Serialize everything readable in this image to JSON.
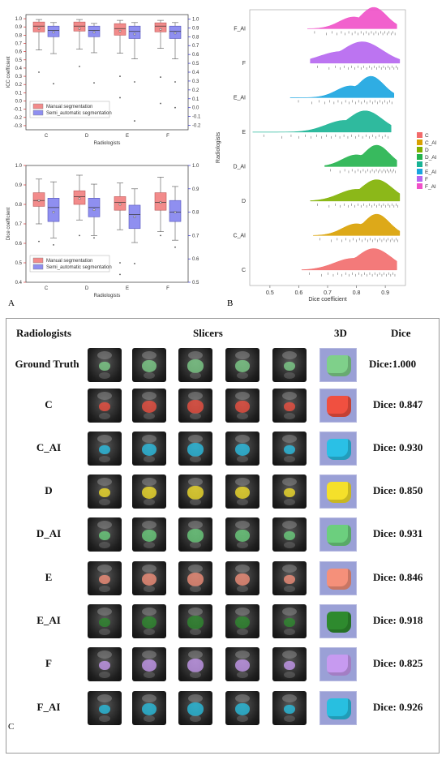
{
  "panel_labels": {
    "a": "A",
    "b": "B",
    "c": "C"
  },
  "chart_data": [
    {
      "type": "box",
      "ylabel": "ICC coefficient",
      "xlabel": "Radiologists",
      "categories": [
        "C",
        "D",
        "E",
        "F"
      ],
      "ylim": [
        -0.35,
        1.05
      ],
      "yticks": [
        -0.3,
        -0.2,
        -0.1,
        0.0,
        0.1,
        0.2,
        0.3,
        0.4,
        0.5,
        0.6,
        0.7,
        0.8,
        0.9,
        1.0
      ],
      "ytick_labels": [
        "-0.3",
        "-0.2",
        "-0.1",
        "0.0",
        "0.1",
        "0.2",
        "0.3",
        "0.4",
        "0.5",
        "0.6",
        "0.7",
        "0.8",
        "0.9",
        "1.0"
      ],
      "y2lim": [
        -0.25,
        1.05
      ],
      "y2ticks": [
        -0.2,
        -0.1,
        0.0,
        0.1,
        0.2,
        0.3,
        0.4,
        0.5,
        0.6,
        0.7,
        0.8,
        0.9,
        1.0
      ],
      "y2tick_labels": [
        "-0.2",
        "-0.1",
        "0.0",
        "0.1",
        "0.2",
        "0.3",
        "0.4",
        "0.5",
        "0.6",
        "0.7",
        "0.8",
        "0.9",
        "1.0"
      ],
      "legend": "bottom-left",
      "series": [
        {
          "name": "Manual segmentation",
          "color": "#f28b8b",
          "boxes": [
            {
              "min": 0.62,
              "q1": 0.84,
              "median": 0.91,
              "q3": 0.96,
              "max": 0.99,
              "mean": 0.88,
              "outliers": [
                0.35
              ]
            },
            {
              "min": 0.63,
              "q1": 0.85,
              "median": 0.91,
              "q3": 0.96,
              "max": 0.99,
              "mean": 0.88,
              "outliers": [
                0.42
              ]
            },
            {
              "min": 0.58,
              "q1": 0.8,
              "median": 0.88,
              "q3": 0.94,
              "max": 0.98,
              "mean": 0.85,
              "outliers": [
                0.3,
                0.04
              ]
            },
            {
              "min": 0.64,
              "q1": 0.84,
              "median": 0.91,
              "q3": 0.95,
              "max": 0.98,
              "mean": 0.87,
              "outliers": [
                0.29,
                -0.03
              ]
            }
          ]
        },
        {
          "name": "Semi_automatic segmentation",
          "color": "#8f8ff0",
          "boxes": [
            {
              "min": 0.61,
              "q1": 0.8,
              "median": 0.87,
              "q3": 0.92,
              "max": 0.96,
              "mean": 0.85,
              "outliers": [
                0.27
              ]
            },
            {
              "min": 0.62,
              "q1": 0.8,
              "median": 0.87,
              "q3": 0.92,
              "max": 0.95,
              "mean": 0.85,
              "outliers": [
                0.28
              ]
            },
            {
              "min": 0.55,
              "q1": 0.78,
              "median": 0.86,
              "q3": 0.92,
              "max": 0.96,
              "mean": 0.83,
              "outliers": [
                0.29,
                -0.15
              ]
            },
            {
              "min": 0.55,
              "q1": 0.78,
              "median": 0.86,
              "q3": 0.92,
              "max": 0.96,
              "mean": 0.84,
              "outliers": [
                0.29,
                0.0
              ]
            }
          ]
        }
      ]
    },
    {
      "type": "box",
      "ylabel": "Dice coefficient",
      "xlabel": "Radiologists",
      "categories": [
        "C",
        "D",
        "E",
        "F"
      ],
      "ylim": [
        0.4,
        1.0
      ],
      "yticks": [
        0.4,
        0.5,
        0.6,
        0.7,
        0.8,
        0.9,
        1.0
      ],
      "ytick_labels": [
        "0.4",
        "0.5",
        "0.6",
        "0.7",
        "0.8",
        "0.9",
        "1.0"
      ],
      "y2lim": [
        0.5,
        1.0
      ],
      "y2ticks": [
        0.5,
        0.6,
        0.7,
        0.8,
        0.9,
        1.0
      ],
      "y2tick_labels": [
        "0.5",
        "0.6",
        "0.7",
        "0.8",
        "0.9",
        "1.0"
      ],
      "legend": "bottom-left",
      "series": [
        {
          "name": "Manual segmentation",
          "color": "#f28b8b",
          "boxes": [
            {
              "min": 0.7,
              "q1": 0.79,
              "median": 0.82,
              "q3": 0.86,
              "max": 0.93,
              "mean": 0.82,
              "outliers": [
                0.61
              ]
            },
            {
              "min": 0.72,
              "q1": 0.8,
              "median": 0.84,
              "q3": 0.87,
              "max": 0.95,
              "mean": 0.83,
              "outliers": [
                0.64
              ]
            },
            {
              "min": 0.67,
              "q1": 0.77,
              "median": 0.81,
              "q3": 0.84,
              "max": 0.91,
              "mean": 0.8,
              "outliers": [
                0.44,
                0.5
              ]
            },
            {
              "min": 0.66,
              "q1": 0.77,
              "median": 0.81,
              "q3": 0.86,
              "max": 0.94,
              "mean": 0.81,
              "outliers": [
                0.64
              ]
            }
          ]
        },
        {
          "name": "Semi_automatic segmentation",
          "color": "#8f8ff0",
          "boxes": [
            {
              "min": 0.69,
              "q1": 0.76,
              "median": 0.82,
              "q3": 0.86,
              "max": 0.93,
              "mean": 0.8,
              "outliers": [
                0.66
              ]
            },
            {
              "min": 0.7,
              "q1": 0.78,
              "median": 0.82,
              "q3": 0.86,
              "max": 0.92,
              "mean": 0.81,
              "outliers": [
                0.69
              ]
            },
            {
              "min": 0.67,
              "q1": 0.73,
              "median": 0.79,
              "q3": 0.83,
              "max": 0.9,
              "mean": 0.78,
              "outliers": [
                0.58
              ]
            },
            {
              "min": 0.68,
              "q1": 0.76,
              "median": 0.8,
              "q3": 0.85,
              "max": 0.91,
              "mean": 0.8,
              "outliers": [
                0.65
              ]
            }
          ]
        }
      ]
    },
    {
      "type": "raincloud",
      "xlabel": "Dice coefficient",
      "ylabel": "Radiologists",
      "xlim": [
        0.43,
        0.97
      ],
      "xticks": [
        0.5,
        0.6,
        0.7,
        0.8,
        0.9
      ],
      "xtick_labels": [
        "0.5",
        "0.6",
        "0.7",
        "0.8",
        "0.9"
      ],
      "legend": "right",
      "categories_top_to_bottom": [
        "F_AI",
        "F",
        "E_AI",
        "E",
        "D_AI",
        "D",
        "C_AI",
        "C"
      ],
      "series": [
        {
          "name": "C",
          "color": "#f26b6b",
          "range": [
            0.61,
            0.94
          ],
          "peak": 0.86,
          "width": 0.06
        },
        {
          "name": "C_AI",
          "color": "#d9a000",
          "range": [
            0.65,
            0.95
          ],
          "peak": 0.87,
          "width": 0.045
        },
        {
          "name": "D",
          "color": "#7fb000",
          "range": [
            0.64,
            0.95
          ],
          "peak": 0.87,
          "width": 0.055
        },
        {
          "name": "D_AI",
          "color": "#22b24c",
          "range": [
            0.69,
            0.94
          ],
          "peak": 0.87,
          "width": 0.045
        },
        {
          "name": "E",
          "color": "#18b394",
          "range": [
            0.44,
            0.92
          ],
          "peak": 0.83,
          "width": 0.06
        },
        {
          "name": "E_AI",
          "color": "#18a4e0",
          "range": [
            0.57,
            0.93
          ],
          "peak": 0.85,
          "width": 0.045
        },
        {
          "name": "F",
          "color": "#b565f0",
          "range": [
            0.64,
            0.95
          ],
          "peak": 0.82,
          "width": 0.07
        },
        {
          "name": "F_AI",
          "color": "#f050c8",
          "range": [
            0.63,
            0.94
          ],
          "peak": 0.86,
          "width": 0.045
        }
      ]
    }
  ],
  "table": {
    "headers": {
      "radiologists": "Radiologists",
      "slicers": "Slicers",
      "three_d": "3D",
      "dice": "Dice"
    },
    "rows": [
      {
        "name": "Ground Truth",
        "dice": "Dice:1.000",
        "color": "#7fd08a"
      },
      {
        "name": "C",
        "dice": "Dice: 0.847",
        "color": "#f05040"
      },
      {
        "name": "C_AI",
        "dice": "Dice: 0.930",
        "color": "#2ac0e6"
      },
      {
        "name": "D",
        "dice": "Dice: 0.850",
        "color": "#f5e02a"
      },
      {
        "name": "D_AI",
        "dice": "Dice: 0.931",
        "color": "#6ccf7e"
      },
      {
        "name": "E",
        "dice": "Dice: 0.846",
        "color": "#f5907a"
      },
      {
        "name": "E_AI",
        "dice": "Dice: 0.918",
        "color": "#2e8a2e"
      },
      {
        "name": "F",
        "dice": "Dice: 0.825",
        "color": "#c79af0"
      },
      {
        "name": "F_AI",
        "dice": "Dice: 0.926",
        "color": "#28bfe0"
      }
    ]
  }
}
